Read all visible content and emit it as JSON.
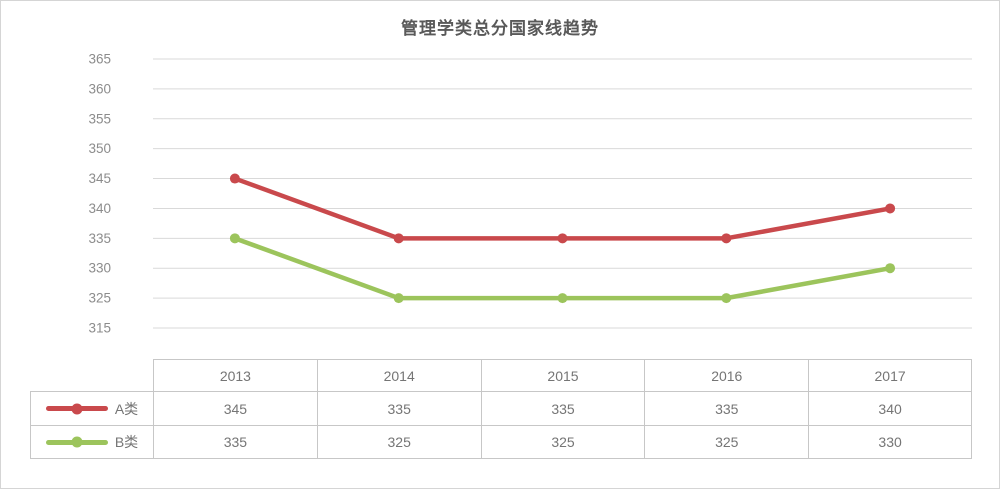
{
  "title": "管理学类总分国家线趋势",
  "colors": {
    "series_a": "#c9494c",
    "series_b": "#9cc45c",
    "gridline": "#d9d9d9",
    "table_border": "#c7c7c7",
    "axis_label": "#8c8c8c",
    "title_text": "#595959",
    "table_text": "#757575"
  },
  "chart_data": {
    "type": "line",
    "title": "管理学类总分国家线趋势",
    "categories": [
      "2013",
      "2014",
      "2015",
      "2016",
      "2017"
    ],
    "series": [
      {
        "name": "A类",
        "color": "#c9494c",
        "values": [
          345,
          335,
          335,
          335,
          340
        ]
      },
      {
        "name": "B类",
        "color": "#9cc45c",
        "values": [
          335,
          325,
          325,
          325,
          330
        ]
      }
    ],
    "y_ticks": [
      365,
      360,
      355,
      350,
      345,
      340,
      335,
      330,
      325,
      315
    ],
    "ylim": [
      315,
      365
    ],
    "xlabel": "",
    "ylabel": "",
    "grid": "horizontal",
    "legend_position": "table-left-column"
  }
}
